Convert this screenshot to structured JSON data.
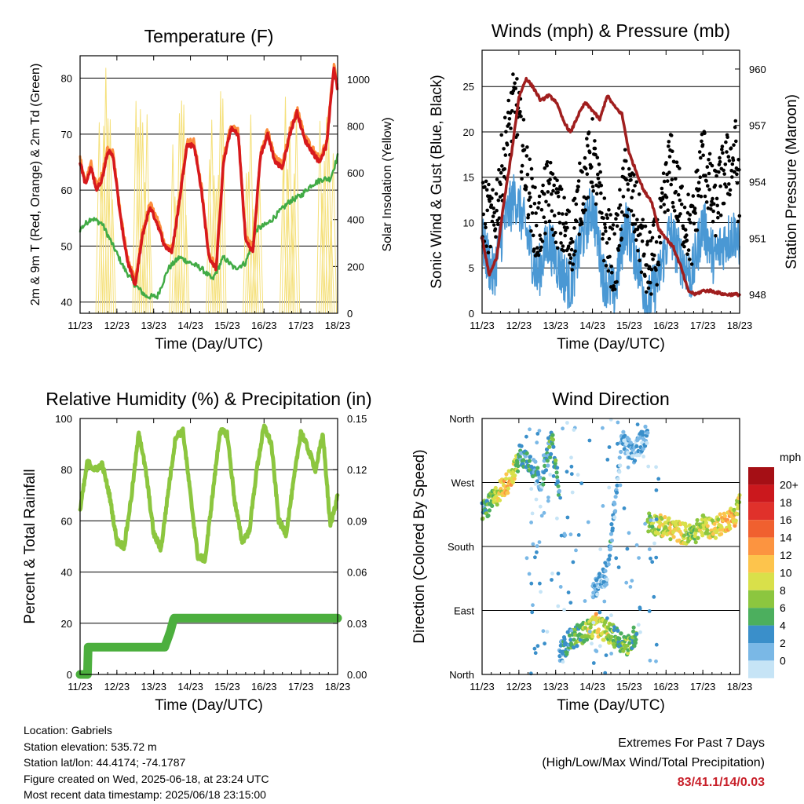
{
  "chart_data": [
    {
      "type": "line",
      "title": "Temperature (F)",
      "xlabel": "Time (Day/UTC)",
      "ylabel": "2m & 9m T (Red, Orange) & 2m Td (Green)",
      "ylabel_right": "Solar Insolation (Yellow)",
      "x_ticks": [
        "11/23",
        "12/23",
        "13/23",
        "14/23",
        "15/23",
        "16/23",
        "17/23",
        "18/23"
      ],
      "ylim": [
        38,
        84
      ],
      "y_ticks": [
        40,
        50,
        60,
        70,
        80
      ],
      "ylim_right": [
        0,
        1100
      ],
      "y_ticks_right": [
        0,
        200,
        400,
        600,
        800,
        1000
      ],
      "grid": "horizontal",
      "colors": {
        "t2m": "#d7191c",
        "t9m": "#fd8d3c",
        "td": "#41ab45",
        "solar": "#f5e07a"
      },
      "series": [
        {
          "name": "2m T",
          "x": [
            0,
            0.15,
            0.3,
            0.45,
            0.6,
            0.75,
            0.9,
            1.1,
            1.3,
            1.5,
            1.7,
            1.9,
            2.1,
            2.3,
            2.5,
            2.7,
            2.9,
            3.1,
            3.3,
            3.5,
            3.7,
            3.9,
            4.1,
            4.3,
            4.5,
            4.7,
            4.9,
            5.1,
            5.3,
            5.5,
            5.7,
            5.9,
            6.1,
            6.3,
            6.5,
            6.7,
            6.9,
            7.0
          ],
          "values": [
            65,
            61,
            64,
            60,
            62,
            67,
            66,
            55,
            47,
            43,
            52,
            57,
            54,
            50,
            49,
            58,
            68,
            68,
            60,
            48,
            46,
            65,
            71,
            70,
            51,
            49,
            66,
            70,
            65,
            64,
            70,
            74,
            69,
            67,
            65,
            68,
            82,
            78
          ]
        },
        {
          "name": "2m Td",
          "x": [
            0,
            0.3,
            0.6,
            0.9,
            1.2,
            1.5,
            1.8,
            2.1,
            2.4,
            2.7,
            3.0,
            3.3,
            3.6,
            3.9,
            4.2,
            4.5,
            4.8,
            5.1,
            5.4,
            5.7,
            6.0,
            6.3,
            6.6,
            6.8,
            7.0
          ],
          "values": [
            53,
            55,
            54,
            50,
            46,
            43,
            41,
            41,
            46,
            48,
            47,
            46,
            44,
            48,
            46,
            47,
            53,
            54,
            56,
            58,
            59,
            61,
            62,
            62,
            66
          ]
        },
        {
          "name": "Solar Insolation",
          "peaks_day": [
            0.7,
            1.7,
            2.7,
            3.7,
            4.7,
            5.7,
            6.7
          ],
          "peak_values": [
            1050,
            980,
            990,
            1000,
            960,
            940,
            930
          ]
        }
      ]
    },
    {
      "type": "line",
      "title": "Winds (mph) & Pressure (mb)",
      "xlabel": "Time (Day/UTC)",
      "ylabel": "Sonic Wind & Gust (Blue, Black)",
      "ylabel_right": "Station Pressure (Maroon)",
      "x_ticks": [
        "11/23",
        "12/23",
        "13/23",
        "14/23",
        "15/23",
        "16/23",
        "17/23",
        "18/23"
      ],
      "ylim": [
        0,
        29
      ],
      "y_ticks": [
        0,
        5,
        10,
        15,
        20,
        25
      ],
      "ylim_right": [
        947,
        961
      ],
      "y_ticks_right": [
        948,
        951,
        954,
        957,
        960
      ],
      "grid": "horizontal",
      "colors": {
        "wind": "#4a98d4",
        "gust": "#000000",
        "pressure": "#a01e1e"
      },
      "series": [
        {
          "name": "Wind",
          "x": [
            0,
            0.3,
            0.6,
            0.9,
            1.2,
            1.5,
            1.8,
            2.1,
            2.4,
            2.7,
            3.0,
            3.3,
            3.6,
            3.9,
            4.2,
            4.5,
            4.8,
            5.1,
            5.4,
            5.7,
            6.0,
            6.3,
            6.6,
            6.9,
            7.0
          ],
          "values": [
            8,
            4,
            10,
            13,
            9,
            4,
            8,
            5,
            3,
            8,
            12,
            4,
            2,
            10,
            6,
            1,
            4,
            9,
            6,
            4,
            10,
            6,
            8,
            9,
            6
          ]
        },
        {
          "name": "Gust",
          "x": [
            0,
            0.3,
            0.6,
            0.9,
            1.2,
            1.5,
            1.8,
            2.1,
            2.4,
            2.7,
            3.0,
            3.3,
            3.6,
            3.9,
            4.2,
            4.5,
            4.8,
            5.1,
            5.4,
            5.7,
            6.0,
            6.3,
            6.6,
            6.9,
            7.0
          ],
          "values": [
            10,
            8,
            16,
            22,
            14,
            7,
            12,
            9,
            6,
            12,
            16,
            8,
            4,
            13,
            9,
            3,
            6,
            15,
            10,
            7,
            16,
            10,
            14,
            16,
            10
          ]
        },
        {
          "name": "Pressure",
          "x": [
            0,
            0.2,
            0.4,
            0.6,
            0.8,
            1.0,
            1.2,
            1.4,
            1.6,
            1.8,
            2.0,
            2.2,
            2.4,
            2.6,
            2.8,
            3.0,
            3.2,
            3.4,
            3.6,
            3.8,
            4.0,
            4.2,
            4.4,
            4.6,
            4.8,
            5.0,
            5.2,
            5.4,
            5.6,
            5.8,
            6.0,
            6.2,
            6.4,
            6.6,
            6.8,
            7.0
          ],
          "values": [
            951,
            949,
            950,
            953,
            955.5,
            958.5,
            959.5,
            959,
            958.3,
            958.6,
            958.3,
            957.3,
            956.6,
            957.5,
            958.2,
            957.8,
            957.3,
            958.6,
            958.0,
            957.6,
            955.5,
            954.5,
            953.5,
            953.0,
            951.5,
            951.0,
            950.5,
            949.5,
            948.2,
            948.0,
            948.2,
            948.2,
            948.1,
            948.0,
            948.0,
            948.0
          ]
        }
      ]
    },
    {
      "type": "line",
      "title": "Relative Humidity (%) & Precipitation (in)",
      "xlabel": "Time (Day/UTC)",
      "ylabel": "Percent & Total Rainfall",
      "x_ticks": [
        "11/23",
        "12/23",
        "13/23",
        "14/23",
        "15/23",
        "16/23",
        "17/23",
        "18/23"
      ],
      "ylim": [
        0,
        100
      ],
      "y_ticks": [
        0,
        20,
        40,
        60,
        80,
        100
      ],
      "ylim_right": [
        0,
        0.15
      ],
      "y_ticks_right": [
        "0.00",
        "0.03",
        "0.06",
        "0.09",
        "0.12",
        "0.15"
      ],
      "grid": "horizontal",
      "colors": {
        "rh": "#8cc63f",
        "precip": "#4caf3e"
      },
      "series": [
        {
          "name": "RH",
          "x": [
            0,
            0.2,
            0.4,
            0.6,
            0.8,
            1.0,
            1.2,
            1.4,
            1.6,
            1.8,
            2.0,
            2.2,
            2.4,
            2.6,
            2.8,
            3.0,
            3.2,
            3.4,
            3.6,
            3.8,
            4.0,
            4.2,
            4.4,
            4.6,
            4.8,
            5.0,
            5.2,
            5.4,
            5.6,
            5.8,
            6.0,
            6.2,
            6.4,
            6.6,
            6.8,
            7.0
          ],
          "values": [
            64,
            83,
            80,
            82,
            70,
            52,
            50,
            70,
            95,
            78,
            55,
            49,
            72,
            93,
            95,
            70,
            46,
            45,
            70,
            95,
            94,
            68,
            52,
            56,
            80,
            97,
            90,
            60,
            55,
            75,
            95,
            88,
            80,
            94,
            58,
            70
          ]
        },
        {
          "name": "Total Precipitation",
          "x": [
            0,
            0.1,
            0.2,
            0.21,
            1.0,
            2.0,
            2.3,
            2.45,
            2.55,
            3.0,
            4.0,
            5.0,
            6.0,
            7.0
          ],
          "values": [
            0.0,
            0.0,
            0.0,
            0.016,
            0.016,
            0.016,
            0.016,
            0.025,
            0.033,
            0.033,
            0.033,
            0.033,
            0.033,
            0.033
          ]
        }
      ]
    },
    {
      "type": "scatter",
      "title": "Wind Direction",
      "xlabel": "Time (Day/UTC)",
      "ylabel": "Direction (Colored By Speed)",
      "x_ticks": [
        "11/23",
        "12/23",
        "13/23",
        "14/23",
        "15/23",
        "16/23",
        "17/23",
        "18/23"
      ],
      "y_ticks": [
        "North",
        "East",
        "South",
        "West",
        "North"
      ],
      "ylim": [
        0,
        360
      ],
      "grid": "horizontal",
      "colorbar": {
        "title": "mph",
        "labels": [
          "20+",
          "18",
          "16",
          "14",
          "12",
          "10",
          "8",
          "6",
          "4",
          "2",
          "0"
        ],
        "colors": [
          "#a50f15",
          "#cb181d",
          "#e0312b",
          "#f0602f",
          "#fc9440",
          "#fdc44c",
          "#d9e04a",
          "#8cc63f",
          "#4caf5e",
          "#3a8fca",
          "#7ab8e6",
          "#c6e4f6"
        ]
      },
      "clusters": [
        {
          "x": [
            0,
            0.15,
            0.3,
            0.5,
            0.7,
            0.9,
            1.0
          ],
          "dir": [
            230,
            235,
            245,
            260,
            270,
            290,
            300
          ],
          "speed": [
            5,
            6,
            8,
            10,
            12,
            9,
            7
          ]
        },
        {
          "x": [
            1.0,
            1.3,
            1.6,
            1.9,
            2.1
          ],
          "dir": [
            310,
            300,
            270,
            330,
            250
          ],
          "speed": [
            4,
            5,
            3,
            6,
            4
          ]
        },
        {
          "x": [
            2.1,
            2.4,
            2.8,
            3.1,
            3.4,
            3.7,
            4.0,
            4.2
          ],
          "dir": [
            30,
            50,
            60,
            70,
            60,
            50,
            40,
            60
          ],
          "speed": [
            3,
            5,
            8,
            11,
            9,
            6,
            8,
            5
          ]
        },
        {
          "x": [
            3.0,
            3.4,
            3.8,
            4.1,
            4.5
          ],
          "dir": [
            120,
            140,
            330,
            310,
            340
          ],
          "speed": [
            2,
            3,
            2,
            3,
            2
          ]
        },
        {
          "x": [
            4.5,
            4.8,
            5.1,
            5.4,
            5.7,
            6.0,
            6.3,
            6.6,
            6.9,
            7.0
          ],
          "dir": [
            215,
            210,
            205,
            200,
            195,
            210,
            205,
            215,
            225,
            250
          ],
          "speed": [
            7,
            9,
            11,
            10,
            8,
            9,
            10,
            12,
            11,
            9
          ]
        }
      ]
    }
  ],
  "info": {
    "location": "Location: Gabriels",
    "elevation": "Station elevation: 535.72 m",
    "latlon": "Station lat/lon: 44.4174; -74.1787",
    "created": "Figure created on Wed, 2025-06-18, at 23:24 UTC",
    "timestamp": "Most recent data timestamp: 2025/06/18 23:15:00"
  },
  "extremes": {
    "title": "Extremes For Past 7 Days",
    "subtitle": "(High/Low/Max Wind/Total Precipitation)",
    "values": "83/41.1/14/0.03"
  }
}
